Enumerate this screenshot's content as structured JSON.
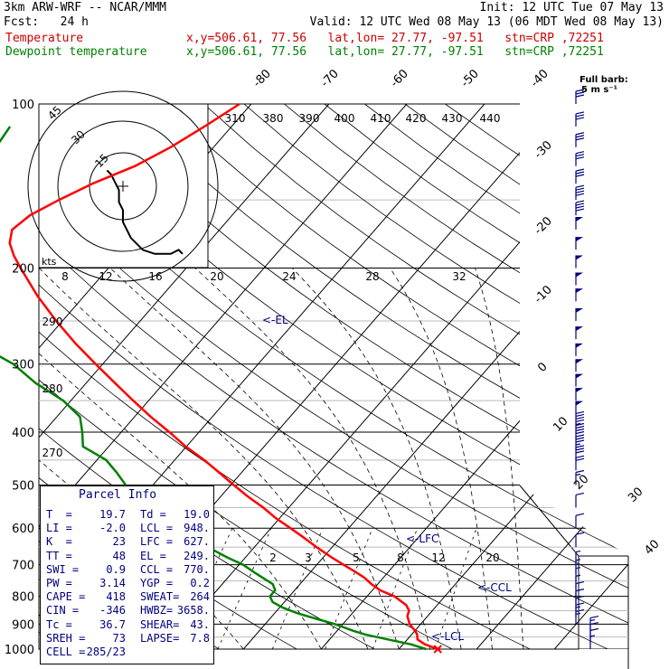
{
  "header": {
    "line1_left": "3km ARW-WRF -- NCAR/MMM",
    "line1_right": "Init: 12 UTC Tue 07 May 13",
    "line2_left": "Fcst:   24 h",
    "line2_right": "Valid: 12 UTC Wed 08 May 13 (06 MDT Wed 08 May 13)",
    "temperature_label": "Temperature",
    "dewpoint_label": "Dewpoint temperature",
    "temperature_info": "x,y=506.61, 77.56   lat,lon= 27.77, -97.51   stn=CRP ,72251",
    "dewpoint_info": "x,y=506.61, 77.56   lat,lon= 27.77, -97.51   stn=CRP ,72251"
  },
  "colors": {
    "temperature": "#ff0000",
    "dewpoint": "#008000",
    "wind": "#000080",
    "header_temp": "#cc0000",
    "header_dew": "#008000"
  },
  "barb_legend": {
    "title": "Full barb:",
    "value": "5 m s⁻¹"
  },
  "hodograph": {
    "ring_labels": [
      "15",
      "30",
      "45"
    ],
    "units": "kts"
  },
  "parcel_info": {
    "title": "Parcel Info",
    "rows": [
      [
        "T  =",
        "19.7",
        "Td =",
        "19.0"
      ],
      [
        "LI =",
        "-2.0",
        "LCL =",
        "948."
      ],
      [
        "K  =",
        "23",
        "LFC =",
        "627."
      ],
      [
        "TT =",
        "48",
        "EL =",
        "249."
      ],
      [
        "SWI =",
        "0.9",
        "CCL =",
        "770."
      ],
      [
        "PW =",
        "3.14",
        "YGP =",
        "0.2"
      ],
      [
        "CAPE =",
        "418",
        "SWEAT=",
        "264"
      ],
      [
        "CIN =",
        "-346",
        "HWBZ=",
        "3658."
      ],
      [
        "Tc =",
        "36.7",
        "SHEAR=",
        "43."
      ],
      [
        "SREH =",
        "73",
        "LAPSE=",
        "7.8"
      ],
      [
        "CELL =",
        "285/23",
        "",
        ""
      ]
    ]
  },
  "levels": {
    "lfc": "<-LFC",
    "ccl": "<-CCL",
    "lcl": "<-LCL",
    "el": "<-EL"
  },
  "chart_data": {
    "type": "line",
    "title": "",
    "pressure_levels_hPa": [
      100,
      200,
      300,
      400,
      500,
      600,
      700,
      800,
      900,
      1000
    ],
    "pressure_tick_labels": [
      "100",
      "200",
      "300",
      "400",
      "500",
      "600",
      "700",
      "800",
      "900",
      "1000"
    ],
    "isotherm_labels": [
      "-80",
      "-70",
      "-60",
      "-50",
      "-40",
      "-30",
      "-20",
      "-10",
      "0",
      "10",
      "20",
      "30",
      "40"
    ],
    "theta_labels_top": [
      "310",
      "380",
      "390",
      "400",
      "410",
      "420",
      "430",
      "440"
    ],
    "theta_labels_left": [
      "290",
      "280",
      "270"
    ],
    "mixing_ratio_labels": [
      "2",
      "3",
      "5",
      "8",
      "12",
      "20"
    ],
    "hodo_speed_labels": [
      "8",
      "12",
      "16",
      "20",
      "24",
      "28",
      "32"
    ],
    "series": [
      {
        "name": "Temperature",
        "p": [
          1000,
          980,
          960,
          940,
          925,
          900,
          870,
          850,
          830,
          800,
          780,
          760,
          740,
          720,
          700,
          680,
          650,
          620,
          600,
          575,
          550,
          525,
          500,
          475,
          450,
          425,
          400,
          375,
          350,
          325,
          300,
          275,
          250,
          225,
          200,
          190,
          180,
          170,
          160,
          150,
          140,
          130,
          120,
          110,
          100
        ],
        "values": [
          25.0,
          22.8,
          21.3,
          20.7,
          20.0,
          18.6,
          17.4,
          17.0,
          16.0,
          13.5,
          11.0,
          9.2,
          7.6,
          5.6,
          3.4,
          1.2,
          -2.0,
          -5.2,
          -7.5,
          -10.5,
          -13.3,
          -16.5,
          -19.6,
          -22.8,
          -26.2,
          -30.1,
          -33.8,
          -37.9,
          -42.0,
          -46.3,
          -50.9,
          -55.8,
          -60.8,
          -66.0,
          -71.3,
          -73.5,
          -75.5,
          -76.7,
          -76.0,
          -74.0,
          -71.5,
          -68.0,
          -65.5,
          -63.5,
          -61.5
        ]
      },
      {
        "name": "Dewpoint temperature",
        "p": [
          1000,
          980,
          960,
          940,
          925,
          900,
          880,
          860,
          840,
          820,
          800,
          780,
          760,
          740,
          720,
          700,
          680,
          650,
          620,
          600,
          575,
          550,
          525,
          500,
          475,
          450,
          425,
          400,
          375,
          350,
          325,
          300,
          275,
          250,
          225,
          200,
          190,
          180,
          170,
          160,
          150,
          140,
          130,
          120,
          110,
          100
        ],
        "values": [
          23.5,
          21.0,
          17.5,
          14.0,
          12.0,
          9.0,
          6.0,
          3.0,
          0.5,
          -1.5,
          -2.5,
          -2.5,
          -3.5,
          -5.5,
          -7.5,
          -9.5,
          -12.2,
          -16.0,
          -20.0,
          -22.8,
          -26.5,
          -30.3,
          -33.2,
          -33.5,
          -36.0,
          -38.8,
          -43.3,
          -45.0,
          -47.0,
          -51.0,
          -56.5,
          -61.5,
          -68.5,
          -75.0,
          -81.5,
          -84.5,
          -85.5,
          -86.0,
          -86.0,
          -85.0,
          -84.5,
          -85.0,
          -86.5,
          -88.0,
          -88.5
        ]
      }
    ],
    "hodograph_path": {
      "u": [
        -4,
        -3,
        -2,
        -1,
        -1,
        0,
        0,
        2,
        5,
        8,
        12,
        14,
        15
      ],
      "v": [
        4,
        3,
        1,
        -1,
        -4,
        -6,
        -9,
        -13,
        -16,
        -17,
        -17,
        -16,
        -17
      ]
    },
    "winds": {
      "p": [
        1000,
        975,
        950,
        925,
        900,
        875,
        850,
        825,
        800,
        775,
        750,
        725,
        700,
        650,
        600,
        550,
        500,
        470,
        450,
        430,
        410,
        390,
        370,
        350,
        330,
        310,
        290,
        270,
        250,
        230,
        215,
        200,
        185,
        170,
        160,
        150,
        140,
        130,
        120,
        110,
        100
      ],
      "speed_ms": [
        3,
        5,
        7,
        8,
        8,
        8,
        7,
        6,
        5,
        4,
        4,
        4,
        4,
        5,
        6,
        7,
        8,
        12,
        15,
        18,
        20,
        23,
        25,
        25,
        25,
        25,
        25,
        25,
        25,
        25,
        25,
        25,
        25,
        25,
        20,
        20,
        15,
        15,
        15,
        15,
        15
      ]
    }
  }
}
